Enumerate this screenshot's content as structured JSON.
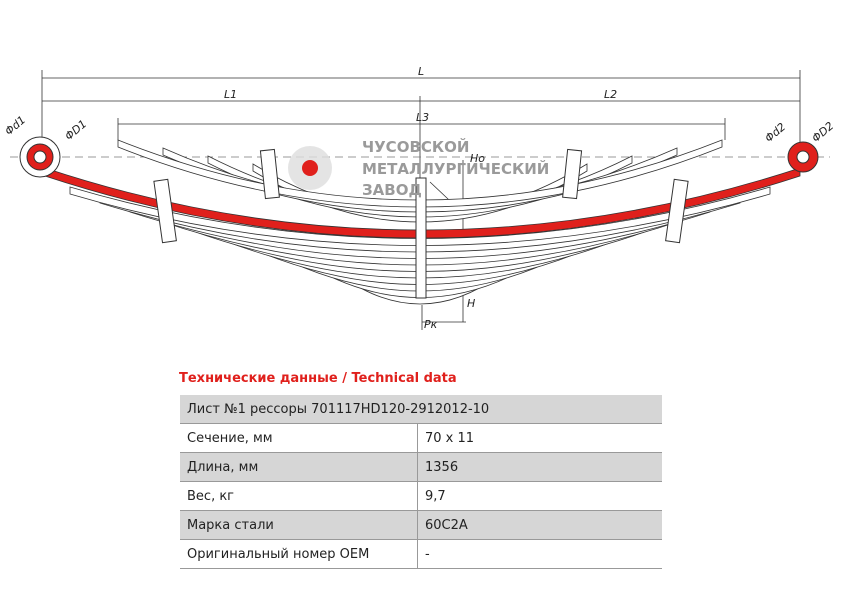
{
  "drawing": {
    "labels": {
      "L": "L",
      "L1": "L1",
      "L2": "L2",
      "L3": "L3",
      "d1": "Φd1",
      "D1": "ΦD1",
      "d2": "Φd2",
      "D2": "ΦD2",
      "Ho": "Ho",
      "H": "H",
      "Pk": "Pк"
    },
    "watermark": [
      "ЧУСОВСКОЙ",
      "МЕТАЛЛУРГИЧЕСКИЙ",
      "ЗАВОД"
    ]
  },
  "table": {
    "title": "Технические данные / Technical data",
    "header": "Лист №1 рессоры 701117HD120-2912012-10",
    "rows": [
      [
        "Сечение, мм",
        "70 x 11"
      ],
      [
        "Длина, мм",
        "1356"
      ],
      [
        "Вес, кг",
        "9,7"
      ],
      [
        "Марка стали",
        "60С2А"
      ],
      [
        "Оригинальный номер OEM",
        "-"
      ]
    ]
  }
}
